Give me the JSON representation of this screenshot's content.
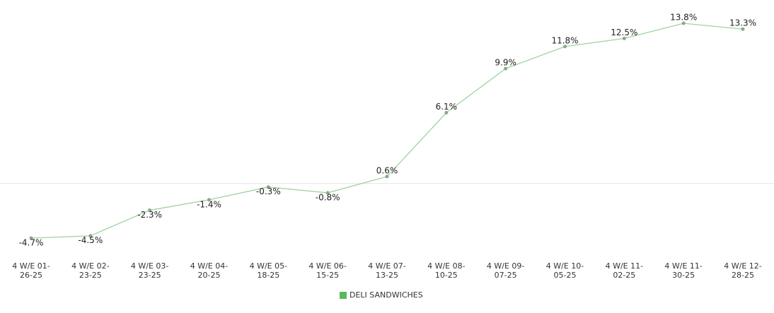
{
  "chart_data": {
    "type": "line",
    "categories": [
      "4 W/E 01-26-25",
      "4 W/E 02-23-25",
      "4 W/E 03-23-25",
      "4 W/E 04-20-25",
      "4 W/E 05-18-25",
      "4 W/E 06-15-25",
      "4 W/E 07-13-25",
      "4 W/E 08-10-25",
      "4 W/E 09-07-25",
      "4 W/E 10-05-25",
      "4 W/E 11-02-25",
      "4 W/E 11-30-25",
      "4 W/E 12-28-25"
    ],
    "series": [
      {
        "name": "DELI SANDWICHES",
        "color": "#5cb85c",
        "values": [
          -4.7,
          -4.5,
          -2.3,
          -1.4,
          -0.3,
          -0.8,
          0.6,
          6.1,
          9.9,
          11.8,
          12.5,
          13.8,
          13.3
        ],
        "value_labels": [
          "-4.7%",
          "-4.5%",
          "-2.3%",
          "-1.4%",
          "-0.3%",
          "-0.8%",
          "0.6%",
          "6.1%",
          "9.9%",
          "11.8%",
          "12.5%",
          "13.8%",
          "13.3%"
        ]
      }
    ],
    "legend": "bottom"
  }
}
